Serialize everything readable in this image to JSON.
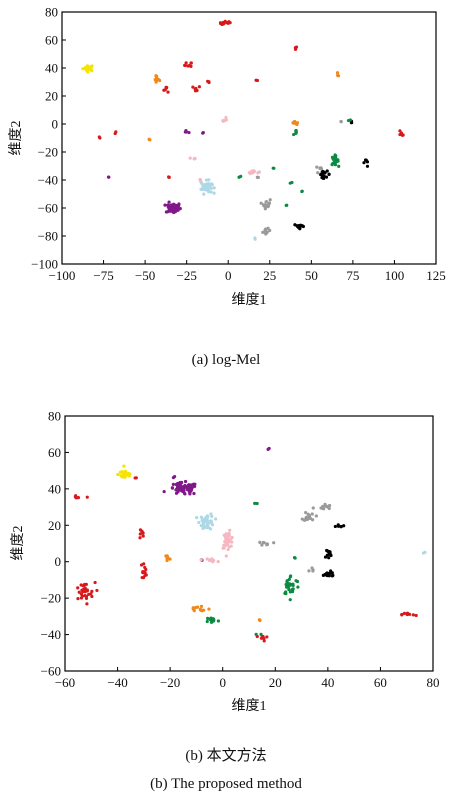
{
  "chart_data": [
    {
      "type": "scatter",
      "caption": "(a) log-Mel",
      "xlabel": "维度1",
      "ylabel": "维度2",
      "xlim": [
        -100,
        125
      ],
      "ylim": [
        -100,
        80
      ],
      "xticks": [
        -100,
        -75,
        -50,
        -25,
        0,
        25,
        50,
        75,
        100,
        125
      ],
      "yticks": [
        -100,
        -80,
        -60,
        -40,
        -20,
        0,
        20,
        40,
        60,
        80
      ],
      "grid": false,
      "clusters": [
        {
          "color": "#f5e400",
          "cx": -84,
          "cy": 40,
          "rx": 3,
          "ry": 2,
          "n": 22
        },
        {
          "color": "#d7191c",
          "cx": -1,
          "cy": 72,
          "rx": 4,
          "ry": 1.2,
          "n": 14
        },
        {
          "color": "#d7191c",
          "cx": -24,
          "cy": 42,
          "rx": 2,
          "ry": 2,
          "n": 8
        },
        {
          "color": "#d7191c",
          "cx": -37,
          "cy": 25,
          "rx": 2,
          "ry": 2,
          "n": 6
        },
        {
          "color": "#d7191c",
          "cx": -19,
          "cy": 25,
          "rx": 2,
          "ry": 2,
          "n": 6
        },
        {
          "color": "#d7191c",
          "cx": -12,
          "cy": 30,
          "rx": 1,
          "ry": 1,
          "n": 3
        },
        {
          "color": "#d7191c",
          "cx": -68,
          "cy": -6,
          "rx": 1,
          "ry": 1,
          "n": 2
        },
        {
          "color": "#d7191c",
          "cx": -78,
          "cy": -10,
          "rx": 1,
          "ry": 1,
          "n": 2
        },
        {
          "color": "#d7191c",
          "cx": -36,
          "cy": -38,
          "rx": 1,
          "ry": 1,
          "n": 2
        },
        {
          "color": "#d7191c",
          "cx": 41,
          "cy": 54,
          "rx": 1,
          "ry": 1,
          "n": 3
        },
        {
          "color": "#d7191c",
          "cx": 17,
          "cy": 31,
          "rx": 0.6,
          "ry": 0.6,
          "n": 2
        },
        {
          "color": "#d7191c",
          "cx": 104,
          "cy": -7,
          "rx": 2,
          "ry": 1.5,
          "n": 5
        },
        {
          "color": "#f0891a",
          "cx": -43,
          "cy": 32,
          "rx": 1.5,
          "ry": 3,
          "n": 10
        },
        {
          "color": "#f0891a",
          "cx": 40,
          "cy": 0,
          "rx": 2,
          "ry": 2,
          "n": 8
        },
        {
          "color": "#f0891a",
          "cx": 66,
          "cy": 35,
          "rx": 0.6,
          "ry": 1.5,
          "n": 3
        },
        {
          "color": "#f0891a",
          "cx": -47,
          "cy": -11,
          "rx": 0.6,
          "ry": 0.6,
          "n": 2
        },
        {
          "color": "#80188a",
          "cx": -33,
          "cy": -60,
          "rx": 4,
          "ry": 3.5,
          "n": 60
        },
        {
          "color": "#80188a",
          "cx": -24,
          "cy": -5,
          "rx": 1.5,
          "ry": 1.5,
          "n": 4
        },
        {
          "color": "#80188a",
          "cx": -15,
          "cy": -6,
          "rx": 0.6,
          "ry": 0.8,
          "n": 2
        },
        {
          "color": "#80188a",
          "cx": -72,
          "cy": -38,
          "rx": 0.6,
          "ry": 0.8,
          "n": 2
        },
        {
          "color": "#f5b8c1",
          "cx": -3,
          "cy": 3,
          "rx": 2,
          "ry": 2,
          "n": 6
        },
        {
          "color": "#f5b8c1",
          "cx": -20,
          "cy": -25,
          "rx": 1.5,
          "ry": 1,
          "n": 4
        },
        {
          "color": "#f5b8c1",
          "cx": -17,
          "cy": -40,
          "rx": 1,
          "ry": 1,
          "n": 3
        },
        {
          "color": "#f5b8c1",
          "cx": 15,
          "cy": -34,
          "rx": 3,
          "ry": 1.2,
          "n": 8
        },
        {
          "color": "#aed8e6",
          "cx": -13,
          "cy": -45,
          "rx": 3,
          "ry": 4,
          "n": 45
        },
        {
          "color": "#aed8e6",
          "cx": 16,
          "cy": -82,
          "rx": 0.6,
          "ry": 0.6,
          "n": 2
        },
        {
          "color": "#9a9a9a",
          "cx": 23,
          "cy": -57,
          "rx": 2,
          "ry": 3,
          "n": 18
        },
        {
          "color": "#9a9a9a",
          "cx": 23,
          "cy": -77,
          "rx": 2,
          "ry": 2,
          "n": 10
        },
        {
          "color": "#9a9a9a",
          "cx": 55,
          "cy": -32,
          "rx": 2,
          "ry": 1.5,
          "n": 6
        },
        {
          "color": "#9a9a9a",
          "cx": 18,
          "cy": -38,
          "rx": 0.8,
          "ry": 0.8,
          "n": 2
        },
        {
          "color": "#9a9a9a",
          "cx": 68,
          "cy": 2,
          "rx": 0.6,
          "ry": 0.6,
          "n": 2
        },
        {
          "color": "#000000",
          "cx": 43,
          "cy": -73,
          "rx": 3,
          "ry": 1.5,
          "n": 12
        },
        {
          "color": "#000000",
          "cx": 58,
          "cy": -36,
          "rx": 3,
          "ry": 2,
          "n": 14
        },
        {
          "color": "#000000",
          "cx": 83,
          "cy": -27,
          "rx": 1.5,
          "ry": 4,
          "n": 5
        },
        {
          "color": "#000000",
          "cx": 74,
          "cy": 1,
          "rx": 1,
          "ry": 1.5,
          "n": 3
        },
        {
          "color": "#0c8a43",
          "cx": 64,
          "cy": -26,
          "rx": 2,
          "ry": 3,
          "n": 20
        },
        {
          "color": "#0c8a43",
          "cx": 41,
          "cy": -6,
          "rx": 1.5,
          "ry": 1.5,
          "n": 6
        },
        {
          "color": "#0c8a43",
          "cx": 73,
          "cy": 3,
          "rx": 0.8,
          "ry": 0.8,
          "n": 2
        },
        {
          "color": "#0c8a43",
          "cx": 7,
          "cy": -38,
          "rx": 1,
          "ry": 1,
          "n": 2
        },
        {
          "color": "#0c8a43",
          "cx": 27,
          "cy": -32,
          "rx": 0.8,
          "ry": 0.8,
          "n": 2
        },
        {
          "color": "#0c8a43",
          "cx": 38,
          "cy": -42,
          "rx": 0.8,
          "ry": 0.8,
          "n": 2
        },
        {
          "color": "#0c8a43",
          "cx": 35,
          "cy": -58,
          "rx": 0.8,
          "ry": 0.8,
          "n": 2
        },
        {
          "color": "#0c8a43",
          "cx": 44,
          "cy": -48,
          "rx": 0.8,
          "ry": 0.8,
          "n": 2
        }
      ]
    },
    {
      "type": "scatter",
      "caption": "(b) 本文方法",
      "caption_en": "(b) The proposed method",
      "xlabel": "维度1",
      "ylabel": "维度2",
      "xlim": [
        -60,
        80
      ],
      "ylim": [
        -60,
        80
      ],
      "xticks": [
        -60,
        -40,
        -20,
        0,
        20,
        40,
        60,
        80
      ],
      "yticks": [
        -60,
        -40,
        -20,
        0,
        20,
        40,
        60,
        80
      ],
      "grid": false,
      "clusters": [
        {
          "color": "#f5e400",
          "cx": -37,
          "cy": 48,
          "rx": 2.5,
          "ry": 2.5,
          "n": 28
        },
        {
          "color": "#80188a",
          "cx": -15,
          "cy": 40,
          "rx": 5,
          "ry": 3,
          "n": 70
        },
        {
          "color": "#80188a",
          "cx": 18,
          "cy": 62,
          "rx": 0.6,
          "ry": 0.6,
          "n": 2
        },
        {
          "color": "#80188a",
          "cx": -18,
          "cy": 47,
          "rx": 0.6,
          "ry": 0.6,
          "n": 2
        },
        {
          "color": "#80188a",
          "cx": -8,
          "cy": 1,
          "rx": 0.6,
          "ry": 0.6,
          "n": 2
        },
        {
          "color": "#aed8e6",
          "cx": -6,
          "cy": 22,
          "rx": 2.5,
          "ry": 4,
          "n": 40
        },
        {
          "color": "#aed8e6",
          "cx": 77,
          "cy": 5,
          "rx": 0.6,
          "ry": 0.6,
          "n": 2
        },
        {
          "color": "#f5b8c1",
          "cx": 2,
          "cy": 12,
          "rx": 2,
          "ry": 4,
          "n": 35
        },
        {
          "color": "#f5b8c1",
          "cx": -5,
          "cy": 1,
          "rx": 2.5,
          "ry": 1,
          "n": 10
        },
        {
          "color": "#d7191c",
          "cx": -55,
          "cy": 35,
          "rx": 2,
          "ry": 1,
          "n": 6
        },
        {
          "color": "#d7191c",
          "cx": -31,
          "cy": 15,
          "rx": 1,
          "ry": 3,
          "n": 8
        },
        {
          "color": "#d7191c",
          "cx": -30,
          "cy": -5,
          "rx": 1,
          "ry": 4,
          "n": 12
        },
        {
          "color": "#d7191c",
          "cx": -53,
          "cy": -17,
          "rx": 4,
          "ry": 5,
          "n": 30
        },
        {
          "color": "#d7191c",
          "cx": 71,
          "cy": -29,
          "rx": 2.5,
          "ry": 1,
          "n": 10
        },
        {
          "color": "#d7191c",
          "cx": 15,
          "cy": -42,
          "rx": 2,
          "ry": 1.5,
          "n": 8
        },
        {
          "color": "#d7191c",
          "cx": -33,
          "cy": 46,
          "rx": 0.6,
          "ry": 0.6,
          "n": 2
        },
        {
          "color": "#f0891a",
          "cx": -21,
          "cy": 2,
          "rx": 1,
          "ry": 2.5,
          "n": 10
        },
        {
          "color": "#f0891a",
          "cx": -9,
          "cy": -26,
          "rx": 4,
          "ry": 2,
          "n": 12
        },
        {
          "color": "#f0891a",
          "cx": 14,
          "cy": -32,
          "rx": 0.8,
          "ry": 0.8,
          "n": 2
        },
        {
          "color": "#0c8a43",
          "cx": -4,
          "cy": -32,
          "rx": 2,
          "ry": 1.5,
          "n": 12
        },
        {
          "color": "#0c8a43",
          "cx": 26,
          "cy": -13,
          "rx": 3,
          "ry": 5,
          "n": 30
        },
        {
          "color": "#0c8a43",
          "cx": 13,
          "cy": 32,
          "rx": 0.8,
          "ry": 0.8,
          "n": 2
        },
        {
          "color": "#0c8a43",
          "cx": 27,
          "cy": 2,
          "rx": 0.8,
          "ry": 0.8,
          "n": 2
        },
        {
          "color": "#0c8a43",
          "cx": 32,
          "cy": 24,
          "rx": 0.8,
          "ry": 0.8,
          "n": 2
        },
        {
          "color": "#0c8a43",
          "cx": 14,
          "cy": -40,
          "rx": 0.8,
          "ry": 0.8,
          "n": 2
        },
        {
          "color": "#9a9a9a",
          "cx": 38,
          "cy": 30,
          "rx": 3,
          "ry": 1.5,
          "n": 12
        },
        {
          "color": "#9a9a9a",
          "cx": 33,
          "cy": 25,
          "rx": 2,
          "ry": 2.5,
          "n": 14
        },
        {
          "color": "#9a9a9a",
          "cx": 17,
          "cy": 10,
          "rx": 2,
          "ry": 1,
          "n": 8
        },
        {
          "color": "#9a9a9a",
          "cx": 34,
          "cy": -4,
          "rx": 1.5,
          "ry": 1,
          "n": 4
        },
        {
          "color": "#000000",
          "cx": 44,
          "cy": 20,
          "rx": 2,
          "ry": 1,
          "n": 6
        },
        {
          "color": "#000000",
          "cx": 40,
          "cy": 4,
          "rx": 1.5,
          "ry": 3,
          "n": 12
        },
        {
          "color": "#000000",
          "cx": 40,
          "cy": -7,
          "rx": 3,
          "ry": 1.5,
          "n": 14
        }
      ]
    }
  ]
}
